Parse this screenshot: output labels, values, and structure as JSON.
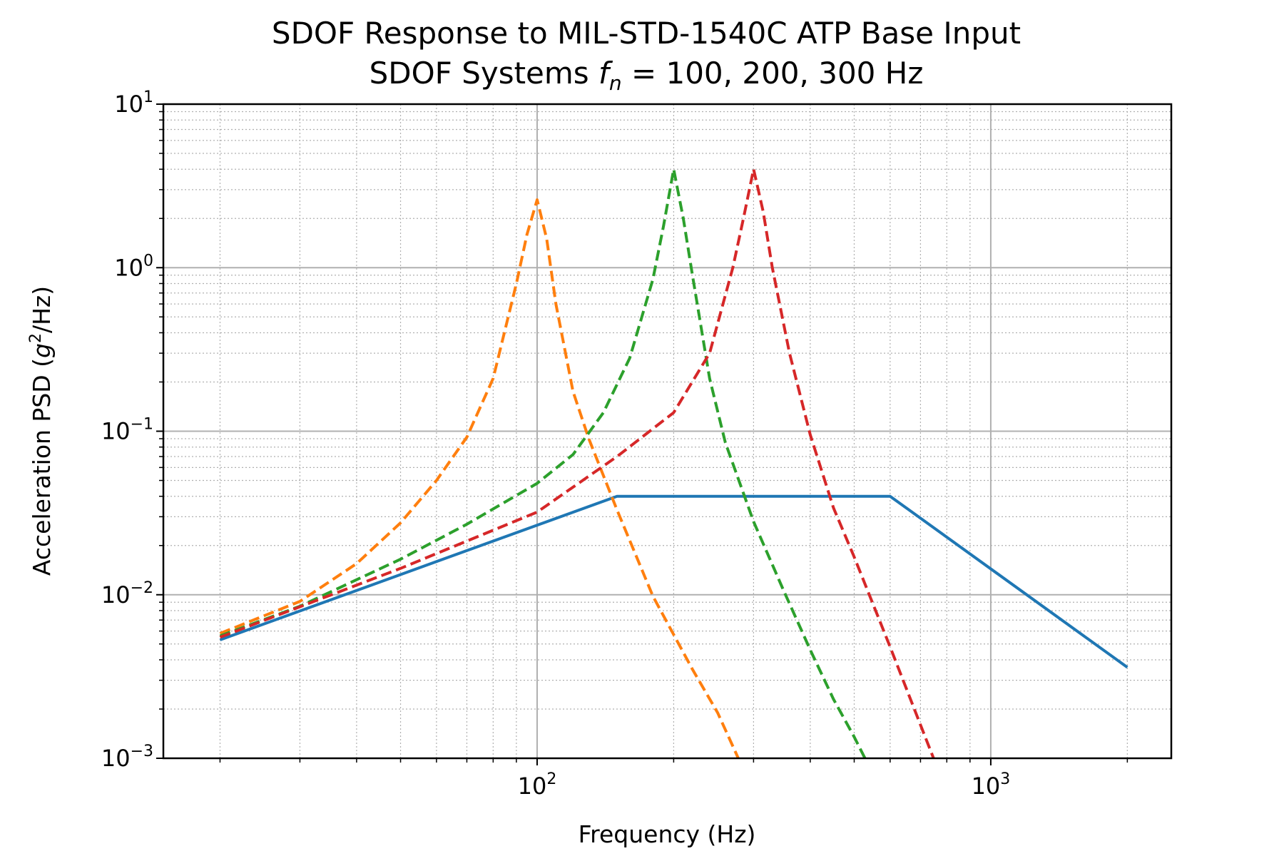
{
  "chart_data": {
    "type": "line",
    "title": "SDOF Response to MIL-STD-1540C ATP Base Input",
    "subtitle_prefix": "SDOF Systems ",
    "subtitle_var": "f",
    "subtitle_sub": "n",
    "subtitle_suffix": " = 100, 200, 300 Hz",
    "xlabel": "Frequency (Hz)",
    "ylabel_prefix": "Acceleration PSD (",
    "ylabel_var": "g",
    "ylabel_sup": "2",
    "ylabel_suffix": "/Hz)",
    "x_scale": "log",
    "y_scale": "log",
    "xlim": [
      15,
      2500
    ],
    "ylim": [
      0.001,
      10
    ],
    "x_ticks": [
      {
        "base": "10",
        "exp": "2",
        "value": 100
      },
      {
        "base": "10",
        "exp": "3",
        "value": 1000
      }
    ],
    "y_ticks": [
      {
        "base": "10",
        "exp": "1",
        "value": 10
      },
      {
        "base": "10",
        "exp": "0",
        "value": 1
      },
      {
        "base": "10",
        "exp": "−1",
        "value": 0.1
      },
      {
        "base": "10",
        "exp": "−2",
        "value": 0.01
      },
      {
        "base": "10",
        "exp": "−3",
        "value": 0.001
      }
    ],
    "grid": true,
    "series": [
      {
        "color": "#1f77b4",
        "style": "solid",
        "x": [
          20,
          150,
          600,
          2000
        ],
        "y": [
          0.0053,
          0.04,
          0.04,
          0.0036
        ]
      },
      {
        "color": "#ff7f0e",
        "style": "dashed",
        "x": [
          20,
          30,
          40,
          50,
          60,
          70,
          80,
          90,
          95,
          100,
          105,
          110,
          120,
          130,
          150,
          180,
          220,
          250,
          280
        ],
        "y": [
          0.0058,
          0.0091,
          0.0155,
          0.0275,
          0.05,
          0.092,
          0.21,
          0.8,
          1.6,
          2.6,
          1.5,
          0.6,
          0.175,
          0.09,
          0.033,
          0.0098,
          0.0035,
          0.0019,
          0.00095
        ]
      },
      {
        "color": "#2ca02c",
        "style": "dashed",
        "x": [
          20,
          30,
          50,
          70,
          100,
          120,
          140,
          160,
          180,
          190,
          200,
          210,
          220,
          240,
          260,
          300,
          350,
          400,
          450,
          500,
          530
        ],
        "y": [
          0.0056,
          0.0085,
          0.0165,
          0.027,
          0.048,
          0.072,
          0.13,
          0.28,
          0.85,
          1.8,
          4.0,
          2.0,
          0.9,
          0.21,
          0.085,
          0.028,
          0.0105,
          0.0046,
          0.0023,
          0.00135,
          0.00098
        ]
      },
      {
        "color": "#d62728",
        "style": "dashed",
        "x": [
          20,
          50,
          100,
          150,
          200,
          240,
          270,
          285,
          300,
          315,
          330,
          360,
          400,
          450,
          500,
          600,
          700,
          750
        ],
        "y": [
          0.0055,
          0.0145,
          0.032,
          0.07,
          0.13,
          0.3,
          1.0,
          2.0,
          4.0,
          2.2,
          1.0,
          0.3,
          0.095,
          0.034,
          0.017,
          0.0048,
          0.0016,
          0.00098
        ]
      }
    ]
  }
}
